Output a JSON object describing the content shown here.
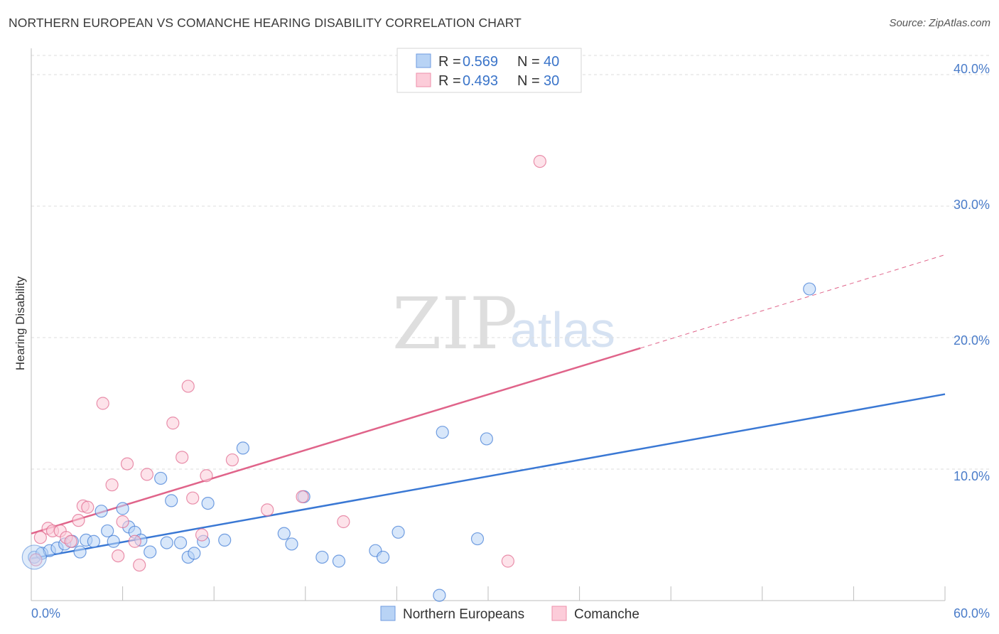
{
  "header": {
    "title": "NORTHERN EUROPEAN VS COMANCHE HEARING DISABILITY CORRELATION CHART",
    "source": "Source: ZipAtlas.com"
  },
  "watermark": {
    "zip": "ZIP",
    "atlas": "atlas"
  },
  "legend": {
    "r_label": "R = ",
    "n_label": "N = ",
    "rows": [
      {
        "series": "Northern Europeans",
        "r": "0.569",
        "n": "40",
        "fill": "#b8d3f5",
        "stroke": "#6f9be0"
      },
      {
        "series": "Comanche",
        "r": "0.493",
        "n": "30",
        "fill": "#fcccd9",
        "stroke": "#ee8faa"
      }
    ]
  },
  "chart_data": {
    "type": "scatter",
    "title": "NORTHERN EUROPEAN VS COMANCHE HEARING DISABILITY CORRELATION CHART",
    "xlabel": "",
    "ylabel": "Hearing Disability",
    "xlim": [
      0,
      60
    ],
    "ylim": [
      0,
      42
    ],
    "x_tick_labels": [
      "0.0%",
      "60.0%"
    ],
    "y_ticks": [
      10,
      20,
      30,
      40
    ],
    "y_tick_labels": [
      "10.0%",
      "20.0%",
      "30.0%",
      "40.0%"
    ],
    "grid": true,
    "legend_position": "top-center",
    "series": [
      {
        "name": "Northern Europeans",
        "color": "#3a78d4",
        "point_fill": "#b8d3f5",
        "points": [
          [
            0.2,
            3.3
          ],
          [
            0.7,
            3.6
          ],
          [
            1.2,
            3.8
          ],
          [
            1.7,
            4.0
          ],
          [
            2.2,
            4.3
          ],
          [
            2.7,
            4.5
          ],
          [
            3.2,
            3.7
          ],
          [
            3.6,
            4.6
          ],
          [
            4.1,
            4.5
          ],
          [
            4.6,
            6.8
          ],
          [
            5.0,
            5.3
          ],
          [
            5.4,
            4.5
          ],
          [
            6.0,
            7.0
          ],
          [
            6.4,
            5.6
          ],
          [
            6.8,
            5.2
          ],
          [
            7.2,
            4.6
          ],
          [
            7.8,
            3.7
          ],
          [
            8.5,
            9.3
          ],
          [
            8.9,
            4.4
          ],
          [
            9.2,
            7.6
          ],
          [
            9.8,
            4.4
          ],
          [
            10.3,
            3.3
          ],
          [
            10.7,
            3.6
          ],
          [
            11.3,
            4.5
          ],
          [
            11.6,
            7.4
          ],
          [
            12.7,
            4.6
          ],
          [
            13.9,
            11.6
          ],
          [
            16.6,
            5.1
          ],
          [
            17.1,
            4.3
          ],
          [
            17.9,
            7.9
          ],
          [
            19.1,
            3.3
          ],
          [
            20.2,
            3.0
          ],
          [
            22.6,
            3.8
          ],
          [
            23.1,
            3.3
          ],
          [
            24.1,
            5.2
          ],
          [
            26.8,
            0.4
          ],
          [
            27.0,
            12.8
          ],
          [
            29.3,
            4.7
          ],
          [
            29.9,
            12.3
          ],
          [
            51.1,
            23.7
          ]
        ],
        "trendline": {
          "x": [
            0,
            60
          ],
          "y": [
            3.2,
            15.7
          ]
        }
      },
      {
        "name": "Comanche",
        "color": "#e0648a",
        "point_fill": "#fcccd9",
        "points": [
          [
            0.3,
            3.1
          ],
          [
            0.6,
            4.8
          ],
          [
            1.1,
            5.5
          ],
          [
            1.4,
            5.3
          ],
          [
            1.9,
            5.3
          ],
          [
            2.3,
            4.8
          ],
          [
            2.6,
            4.5
          ],
          [
            3.1,
            6.1
          ],
          [
            3.4,
            7.2
          ],
          [
            3.7,
            7.1
          ],
          [
            4.7,
            15.0
          ],
          [
            5.3,
            8.8
          ],
          [
            5.7,
            3.4
          ],
          [
            6.0,
            6.0
          ],
          [
            6.3,
            10.4
          ],
          [
            6.8,
            4.5
          ],
          [
            7.1,
            2.7
          ],
          [
            7.6,
            9.6
          ],
          [
            9.3,
            13.5
          ],
          [
            9.9,
            10.9
          ],
          [
            10.3,
            16.3
          ],
          [
            10.6,
            7.8
          ],
          [
            11.2,
            5.0
          ],
          [
            11.5,
            9.5
          ],
          [
            13.2,
            10.7
          ],
          [
            15.5,
            6.9
          ],
          [
            17.8,
            7.9
          ],
          [
            20.5,
            6.0
          ],
          [
            31.3,
            3.0
          ],
          [
            33.4,
            33.4
          ]
        ],
        "trendline": {
          "x": [
            0,
            40
          ],
          "y": [
            5.1,
            19.2
          ]
        },
        "trendline_dashed": {
          "x": [
            40,
            60
          ],
          "y": [
            19.2,
            26.3
          ]
        }
      }
    ]
  }
}
